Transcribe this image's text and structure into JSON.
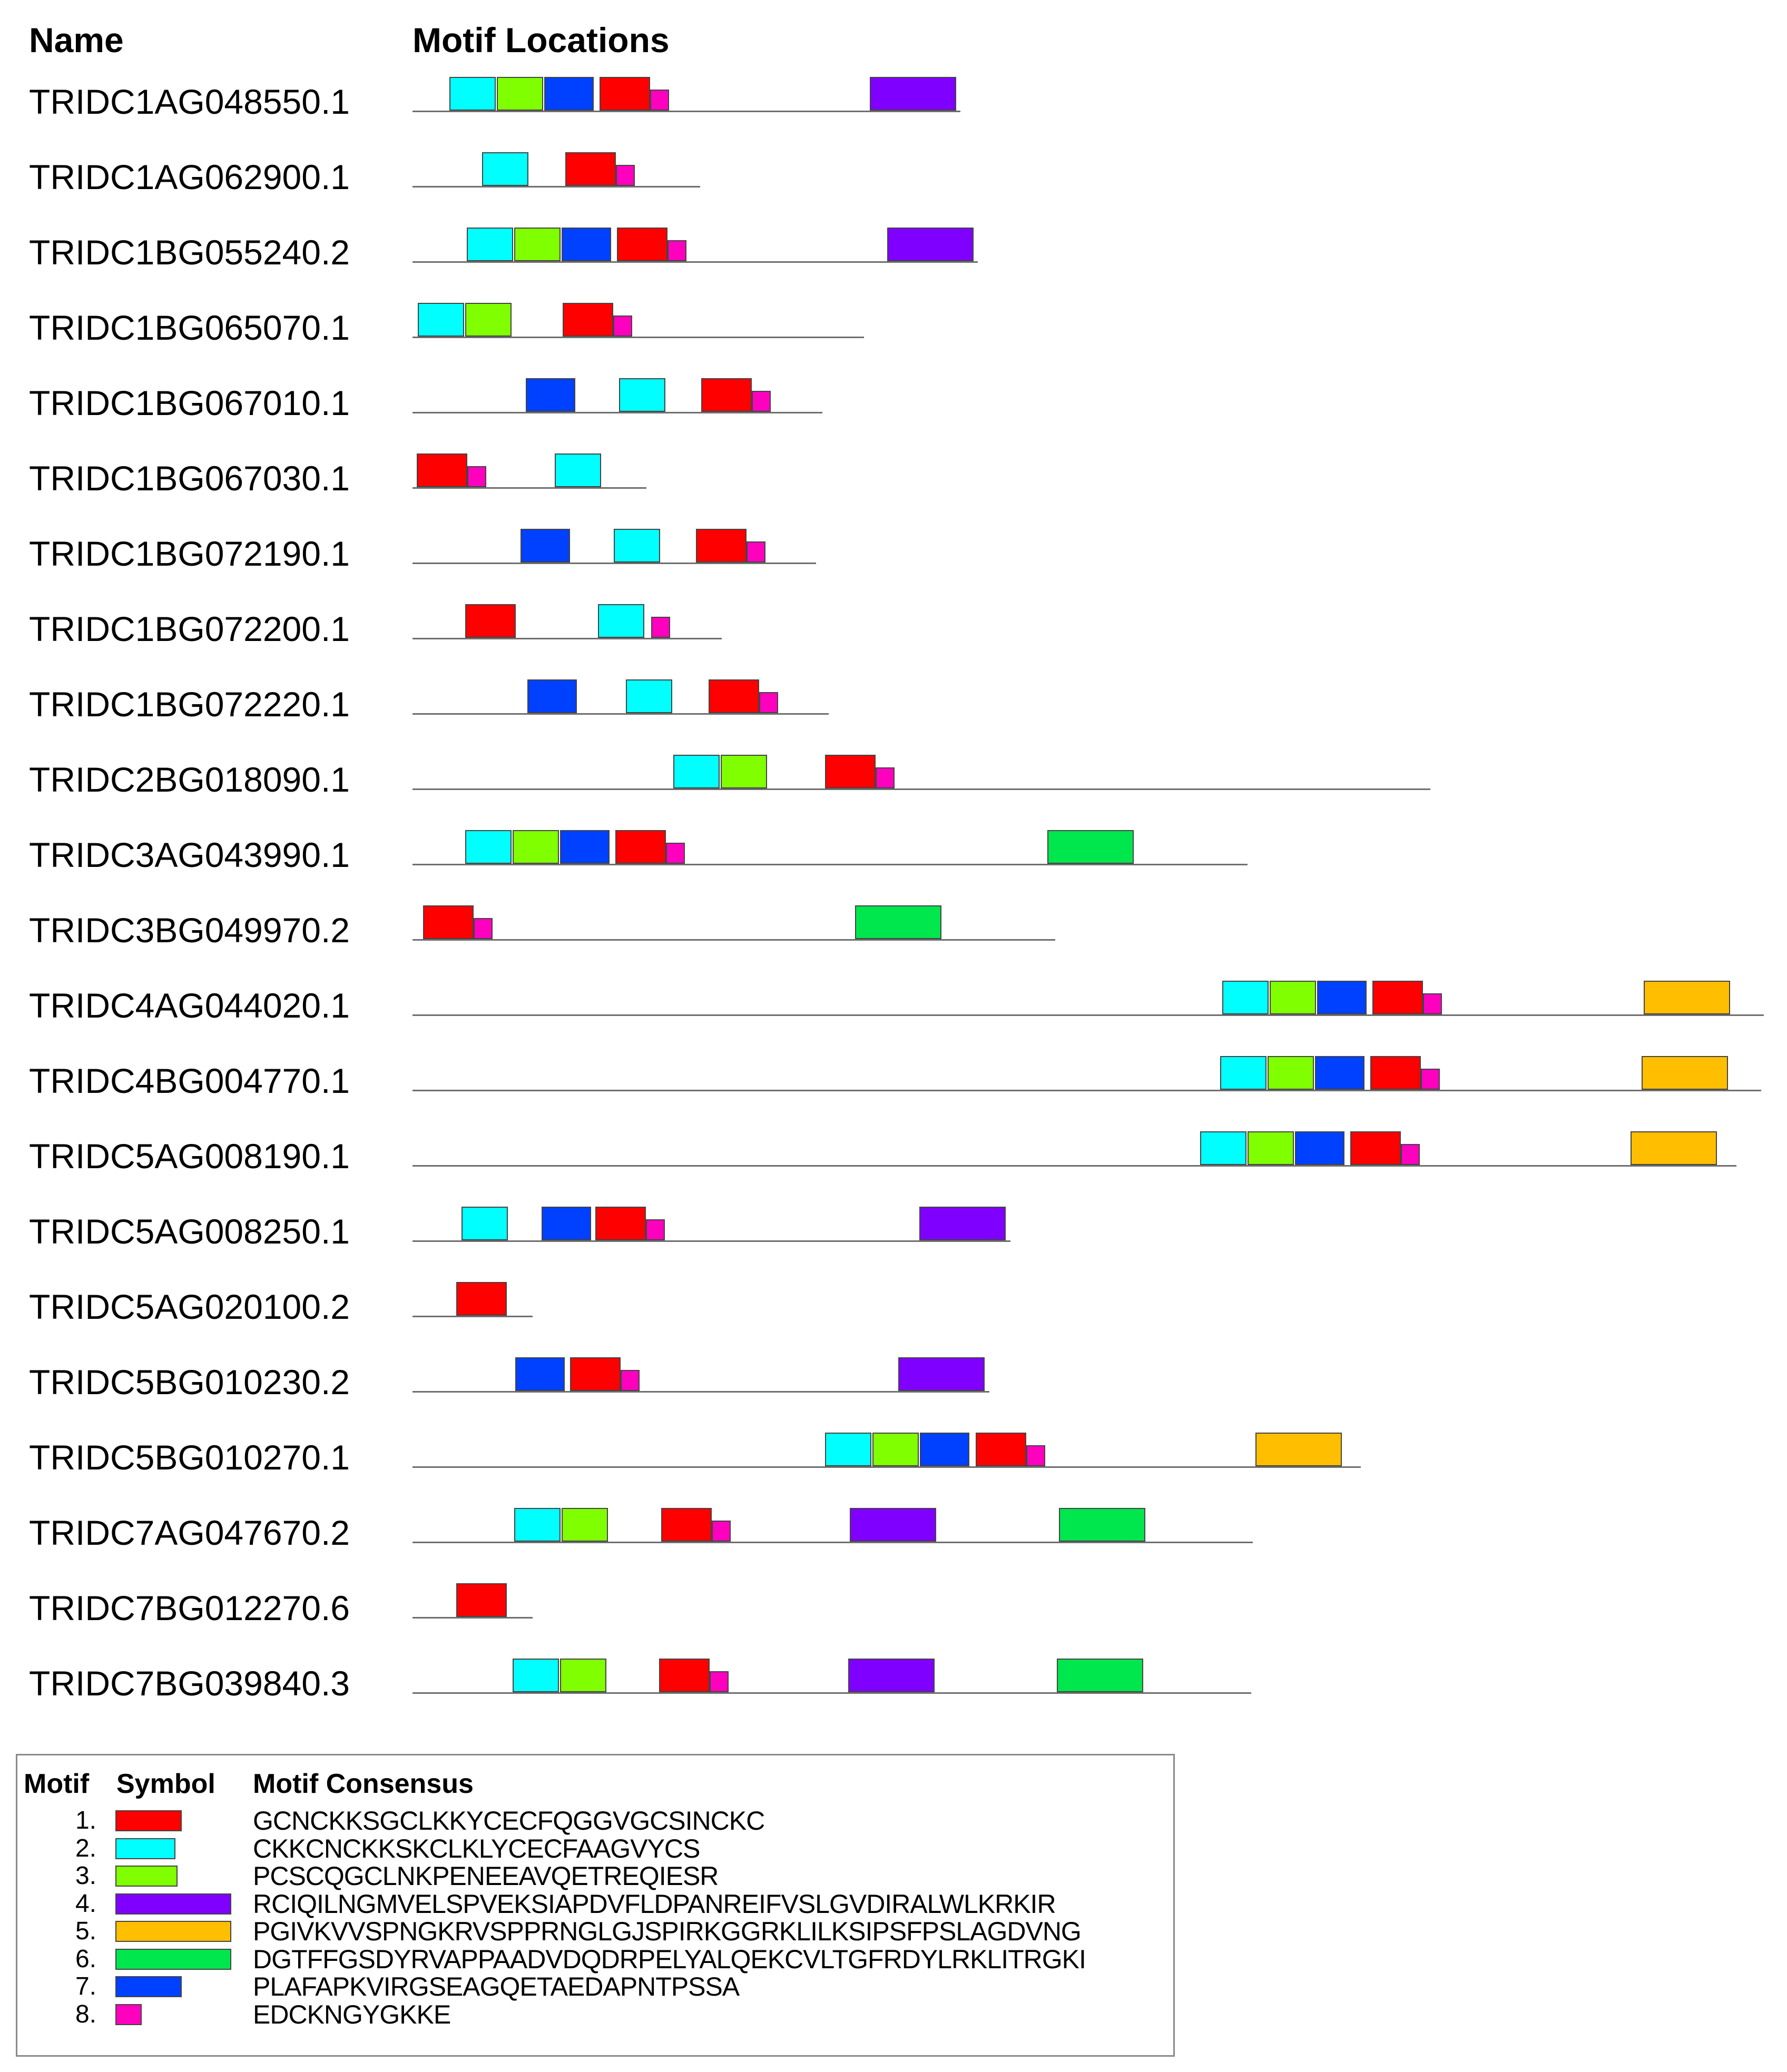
{
  "headers": {
    "name": "Name",
    "locations": "Motif Locations"
  },
  "motif_colors": {
    "1": "#ff0000",
    "2": "#00ffff",
    "3": "#80ff00",
    "4": "#8000ff",
    "5": "#ffbf00",
    "6": "#00e64d",
    "7": "#0040ff",
    "8": "#ff00bf"
  },
  "genes": [
    {
      "name": "TRIDC1AG048550.1",
      "length": 1040,
      "motifs": [
        {
          "motif": 2,
          "start": 70,
          "len": 88
        },
        {
          "motif": 3,
          "start": 160,
          "len": 88
        },
        {
          "motif": 7,
          "start": 250,
          "len": 94
        },
        {
          "motif": 1,
          "start": 355,
          "len": 96
        },
        {
          "motif": 8,
          "start": 451,
          "len": 36
        },
        {
          "motif": 4,
          "start": 868,
          "len": 164
        }
      ]
    },
    {
      "name": "TRIDC1AG062900.1",
      "length": 546,
      "motifs": [
        {
          "motif": 2,
          "start": 132,
          "len": 88
        },
        {
          "motif": 1,
          "start": 290,
          "len": 96
        },
        {
          "motif": 8,
          "start": 386,
          "len": 36
        }
      ]
    },
    {
      "name": "TRIDC1BG055240.2",
      "length": 1073,
      "motifs": [
        {
          "motif": 2,
          "start": 103,
          "len": 88
        },
        {
          "motif": 3,
          "start": 193,
          "len": 88
        },
        {
          "motif": 7,
          "start": 283,
          "len": 94
        },
        {
          "motif": 1,
          "start": 388,
          "len": 96
        },
        {
          "motif": 8,
          "start": 484,
          "len": 36
        },
        {
          "motif": 4,
          "start": 901,
          "len": 164
        }
      ]
    },
    {
      "name": "TRIDC1BG065070.1",
      "length": 857,
      "motifs": [
        {
          "motif": 2,
          "start": 10,
          "len": 88
        },
        {
          "motif": 3,
          "start": 100,
          "len": 88
        },
        {
          "motif": 1,
          "start": 285,
          "len": 96
        },
        {
          "motif": 8,
          "start": 381,
          "len": 36
        }
      ]
    },
    {
      "name": "TRIDC1BG067010.1",
      "length": 778,
      "motifs": [
        {
          "motif": 7,
          "start": 215,
          "len": 94
        },
        {
          "motif": 2,
          "start": 392,
          "len": 88
        },
        {
          "motif": 1,
          "start": 548,
          "len": 96
        },
        {
          "motif": 8,
          "start": 644,
          "len": 36
        }
      ]
    },
    {
      "name": "TRIDC1BG067030.1",
      "length": 444,
      "motifs": [
        {
          "motif": 1,
          "start": 8,
          "len": 96
        },
        {
          "motif": 8,
          "start": 104,
          "len": 36
        },
        {
          "motif": 2,
          "start": 270,
          "len": 88
        }
      ]
    },
    {
      "name": "TRIDC1BG072190.1",
      "length": 766,
      "motifs": [
        {
          "motif": 7,
          "start": 205,
          "len": 94
        },
        {
          "motif": 2,
          "start": 382,
          "len": 88
        },
        {
          "motif": 1,
          "start": 538,
          "len": 96
        },
        {
          "motif": 8,
          "start": 634,
          "len": 36
        }
      ]
    },
    {
      "name": "TRIDC1BG072200.1",
      "length": 587,
      "motifs": [
        {
          "motif": 1,
          "start": 100,
          "len": 96
        },
        {
          "motif": 2,
          "start": 352,
          "len": 88
        },
        {
          "motif": 8,
          "start": 453,
          "len": 36
        }
      ]
    },
    {
      "name": "TRIDC1BG072220.1",
      "length": 790,
      "motifs": [
        {
          "motif": 7,
          "start": 218,
          "len": 94
        },
        {
          "motif": 2,
          "start": 405,
          "len": 88
        },
        {
          "motif": 1,
          "start": 562,
          "len": 96
        },
        {
          "motif": 8,
          "start": 658,
          "len": 36
        }
      ]
    },
    {
      "name": "TRIDC2BG018090.1",
      "length": 1932,
      "motifs": [
        {
          "motif": 2,
          "start": 495,
          "len": 88
        },
        {
          "motif": 3,
          "start": 585,
          "len": 88
        },
        {
          "motif": 1,
          "start": 783,
          "len": 96
        },
        {
          "motif": 8,
          "start": 879,
          "len": 36
        }
      ]
    },
    {
      "name": "TRIDC3AG043990.1",
      "length": 1585,
      "motifs": [
        {
          "motif": 2,
          "start": 100,
          "len": 88
        },
        {
          "motif": 3,
          "start": 190,
          "len": 88
        },
        {
          "motif": 7,
          "start": 280,
          "len": 94
        },
        {
          "motif": 1,
          "start": 385,
          "len": 96
        },
        {
          "motif": 8,
          "start": 481,
          "len": 36
        },
        {
          "motif": 6,
          "start": 1205,
          "len": 164
        }
      ]
    },
    {
      "name": "TRIDC3BG049970.2",
      "length": 1220,
      "motifs": [
        {
          "motif": 1,
          "start": 20,
          "len": 96
        },
        {
          "motif": 8,
          "start": 116,
          "len": 36
        },
        {
          "motif": 6,
          "start": 840,
          "len": 164
        }
      ]
    },
    {
      "name": "TRIDC4AG044020.1",
      "length": 2565,
      "motifs": [
        {
          "motif": 2,
          "start": 1537,
          "len": 88
        },
        {
          "motif": 3,
          "start": 1627,
          "len": 88
        },
        {
          "motif": 7,
          "start": 1717,
          "len": 94
        },
        {
          "motif": 1,
          "start": 1822,
          "len": 96
        },
        {
          "motif": 8,
          "start": 1918,
          "len": 36
        },
        {
          "motif": 5,
          "start": 2337,
          "len": 164
        }
      ]
    },
    {
      "name": "TRIDC4BG004770.1",
      "length": 2560,
      "motifs": [
        {
          "motif": 2,
          "start": 1533,
          "len": 88
        },
        {
          "motif": 3,
          "start": 1623,
          "len": 88
        },
        {
          "motif": 7,
          "start": 1713,
          "len": 94
        },
        {
          "motif": 1,
          "start": 1818,
          "len": 96
        },
        {
          "motif": 8,
          "start": 1914,
          "len": 36
        },
        {
          "motif": 5,
          "start": 2333,
          "len": 164
        }
      ]
    },
    {
      "name": "TRIDC5AG008190.1",
      "length": 2513,
      "motifs": [
        {
          "motif": 2,
          "start": 1495,
          "len": 88
        },
        {
          "motif": 3,
          "start": 1585,
          "len": 88
        },
        {
          "motif": 7,
          "start": 1675,
          "len": 94
        },
        {
          "motif": 1,
          "start": 1780,
          "len": 96
        },
        {
          "motif": 8,
          "start": 1876,
          "len": 36
        },
        {
          "motif": 5,
          "start": 2312,
          "len": 164
        }
      ]
    },
    {
      "name": "TRIDC5AG008250.1",
      "length": 1135,
      "motifs": [
        {
          "motif": 2,
          "start": 93,
          "len": 88
        },
        {
          "motif": 7,
          "start": 245,
          "len": 94
        },
        {
          "motif": 1,
          "start": 347,
          "len": 96
        },
        {
          "motif": 8,
          "start": 443,
          "len": 36
        },
        {
          "motif": 4,
          "start": 962,
          "len": 164
        }
      ]
    },
    {
      "name": "TRIDC5AG020100.2",
      "length": 228,
      "motifs": [
        {
          "motif": 1,
          "start": 83,
          "len": 96
        }
      ]
    },
    {
      "name": "TRIDC5BG010230.2",
      "length": 1095,
      "motifs": [
        {
          "motif": 7,
          "start": 195,
          "len": 94
        },
        {
          "motif": 1,
          "start": 299,
          "len": 96
        },
        {
          "motif": 8,
          "start": 395,
          "len": 36
        },
        {
          "motif": 4,
          "start": 922,
          "len": 164
        }
      ]
    },
    {
      "name": "TRIDC5BG010270.1",
      "length": 1800,
      "motifs": [
        {
          "motif": 2,
          "start": 783,
          "len": 88
        },
        {
          "motif": 3,
          "start": 873,
          "len": 88
        },
        {
          "motif": 7,
          "start": 963,
          "len": 94
        },
        {
          "motif": 1,
          "start": 1069,
          "len": 96
        },
        {
          "motif": 8,
          "start": 1165,
          "len": 36
        },
        {
          "motif": 5,
          "start": 1600,
          "len": 164
        }
      ]
    },
    {
      "name": "TRIDC7AG047670.2",
      "length": 1595,
      "motifs": [
        {
          "motif": 2,
          "start": 193,
          "len": 88
        },
        {
          "motif": 3,
          "start": 283,
          "len": 88
        },
        {
          "motif": 1,
          "start": 472,
          "len": 96
        },
        {
          "motif": 8,
          "start": 568,
          "len": 36
        },
        {
          "motif": 4,
          "start": 830,
          "len": 164
        },
        {
          "motif": 6,
          "start": 1227,
          "len": 164
        }
      ]
    },
    {
      "name": "TRIDC7BG012270.6",
      "length": 228,
      "motifs": [
        {
          "motif": 1,
          "start": 83,
          "len": 96
        }
      ]
    },
    {
      "name": "TRIDC7BG039840.3",
      "length": 1592,
      "motifs": [
        {
          "motif": 2,
          "start": 190,
          "len": 88
        },
        {
          "motif": 3,
          "start": 280,
          "len": 88
        },
        {
          "motif": 1,
          "start": 468,
          "len": 96
        },
        {
          "motif": 8,
          "start": 564,
          "len": 36
        },
        {
          "motif": 4,
          "start": 827,
          "len": 164
        },
        {
          "motif": 6,
          "start": 1223,
          "len": 164
        }
      ]
    }
  ],
  "legend": {
    "header_motif": "Motif",
    "header_symbol": "Symbol",
    "header_consensus": "Motif Consensus",
    "items": [
      {
        "num": "1.",
        "motif": 1,
        "consensus": "GCNCKKSGCLKKYCECFQGGVGCSINCKC"
      },
      {
        "num": "2.",
        "motif": 2,
        "consensus": "CKKCNCKKSKCLKLYCECFAAGVYCS"
      },
      {
        "num": "3.",
        "motif": 3,
        "consensus": "PCSCQGCLNKPENEEAVQETREQIESR"
      },
      {
        "num": "4.",
        "motif": 4,
        "consensus": "RCIQILNGMVELSPVEKSIAPDVFLDPANREIFVSLGVDIRALWLKRKIR"
      },
      {
        "num": "5.",
        "motif": 5,
        "consensus": "PGIVKVVSPNGKRVSPPRNGLGJSPIRKGGRKLILKSIPSFPSLAGDVNG"
      },
      {
        "num": "6.",
        "motif": 6,
        "consensus": "DGTFFGSDYRVAPPAADVDQDRPELYALQEKCVLTGFRDYLRKLITRGKI"
      },
      {
        "num": "7.",
        "motif": 7,
        "consensus": "PLAFAPKVIRGSEAGQETAEDAPNTPSSA"
      },
      {
        "num": "8.",
        "motif": 8,
        "consensus": "EDCKNGYGKKE"
      }
    ]
  }
}
